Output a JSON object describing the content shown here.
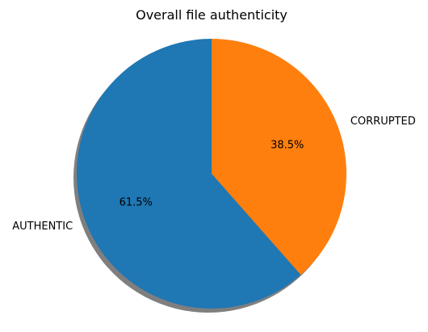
{
  "chart_data": {
    "type": "pie",
    "title": "Overall file authenticity",
    "slices": [
      {
        "label": "CORRUPTED",
        "value": 38.5,
        "pct_label": "38.5%",
        "color": "#ff7f0e"
      },
      {
        "label": "AUTHENTIC",
        "value": 61.5,
        "pct_label": "61.5%",
        "color": "#1f77b4"
      }
    ],
    "shadow": true,
    "start_angle_deg": 90,
    "direction": "clockwise"
  }
}
